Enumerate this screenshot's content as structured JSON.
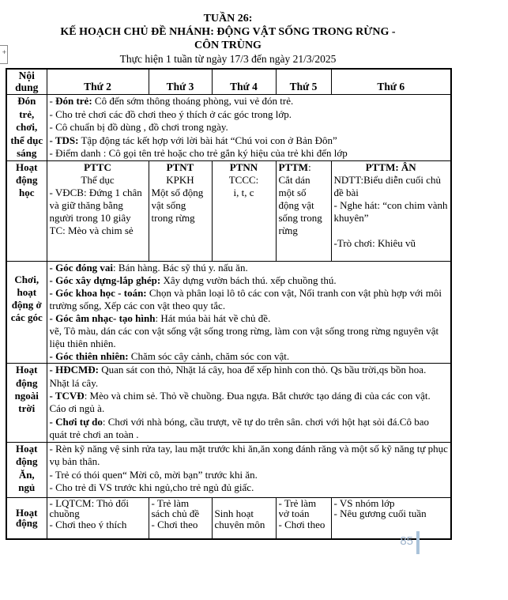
{
  "header": {
    "title1": "TUẦN 26:",
    "title2": "KẾ HOẠCH CHỦ ĐỀ NHÁNH: ĐỘNG VẬT SỐNG TRONG RỪNG -",
    "title3": "CÔN TRÙNG",
    "subtitle": "Thực hiện 1 tuần  từ ngày 17/3 đến ngày 21/3/2025"
  },
  "table": {
    "headers": [
      "Nội dung",
      "Thứ  2",
      "Thứ  3",
      "Thứ  4",
      "Thứ  5",
      "Thứ 6"
    ]
  },
  "rows": {
    "don_tre": {
      "label": [
        "Đón",
        "trẻ,",
        "chơi,",
        "thể dục",
        "sáng"
      ],
      "content": [
        {
          "s": [
            [
              "- ",
              0
            ],
            [
              "Đón trẻ:",
              1
            ],
            [
              " Cô đến sớm thông thoáng phòng, vui vẻ đón trẻ.",
              0
            ]
          ]
        },
        "- Cho trẻ chơi các đồ chơi theo ý thích ở các góc trong lớp.",
        "- Cô chuẩn bị đồ dùng , đồ chơi trong ngày.",
        {
          "s": [
            [
              "- TDS:",
              1
            ],
            [
              " Tập động tác kết hợp với lời bài hát “Chú voi con ở Bản Đôn”",
              0
            ]
          ]
        },
        "- Điểm danh : Cô gọi tên trẻ hoặc cho trẻ gắn ký hiệu của trẻ khi đến lớp"
      ]
    },
    "hoc": {
      "label": [
        "Hoạt",
        "động",
        "học"
      ],
      "t2": [
        {
          "a": "c",
          "s": [
            [
              "PTTC",
              1
            ]
          ]
        },
        {
          "a": "c",
          "s": [
            [
              "Thể dục",
              0
            ]
          ]
        },
        "- VĐCB: Đứng 1 chân và giữ thăng bằng người trong 10 giây",
        "TC: Mèo và chim sẻ"
      ],
      "t3": [
        {
          "a": "c",
          "s": [
            [
              "PTNT",
              1
            ]
          ]
        },
        {
          "a": "c",
          "s": [
            [
              "KPKH",
              0
            ]
          ]
        },
        "Một số động vật sống trong rừng"
      ],
      "t4": [
        {
          "a": "c",
          "s": [
            [
              "PTNN",
              1
            ]
          ]
        },
        {
          "a": "c",
          "s": [
            [
              "TCCC:",
              0
            ]
          ]
        },
        {
          "a": "c",
          "s": [
            [
              "i, t, c",
              0
            ]
          ]
        }
      ],
      "t5": [
        {
          "s": [
            [
              "PTTM",
              1
            ],
            [
              ":",
              0
            ]
          ]
        },
        "Cắt dán một số động vật sống trong rừng"
      ],
      "t6": [
        {
          "a": "c",
          "s": [
            [
              "PTTM: ÂN",
              1
            ]
          ]
        },
        "NDTT:Biểu diễn cuối chủ đề bài",
        "- Nghe hát: “con chim vành khuyên”",
        " ",
        "-Trò chơi: Khiêu vũ"
      ]
    },
    "goc": {
      "label": [
        "Chơi,",
        "hoạt",
        "động ở",
        "các góc"
      ],
      "content": [
        {
          "s": [
            [
              "- Góc đóng vai",
              1
            ],
            [
              ": Bán hàng. Bác sỹ thú y. nấu ăn.",
              0
            ]
          ]
        },
        {
          "s": [
            [
              "- Góc xây dựng-lắp ghép:",
              1
            ],
            [
              "  Xây dựng vườn bách thú. xếp chuồng thú.",
              0
            ]
          ]
        },
        {
          "s": [
            [
              "- Góc khoa học - toán:",
              1
            ],
            [
              " Chọn và phân loại lô tô các con vật, Nối tranh con vật phù hợp với môi trường sống, Xếp các con vật theo quy tắc.",
              0
            ]
          ]
        },
        {
          "s": [
            [
              "- Góc âm nhạc- tạo hình",
              1
            ],
            [
              ": Hát múa bài hát về chủ đề.",
              0
            ]
          ]
        },
        "vẽ, Tô màu, dán  các con vật sống vật sống trong rừng, làm con vật sống trong rừng nguyên vật liệu thiên nhiên.",
        {
          "s": [
            [
              "- Góc thiên nhiên:",
              1
            ],
            [
              " Chăm sóc cây cảnh, chăm sóc con vật.",
              0
            ]
          ]
        }
      ]
    },
    "ngoai_troi": {
      "label": [
        "Hoạt",
        "động",
        "ngoài",
        "trời"
      ],
      "content": [
        {
          "s": [
            [
              "- HĐCMĐ:",
              1
            ],
            [
              " Quan sát con thỏ, Nhặt lá cây, hoa để xếp hình con thỏ. Qs bầu trời,qs bồn hoa. Nhặt lá cây.",
              0
            ]
          ]
        },
        {
          "s": [
            [
              "- TCVĐ",
              1
            ],
            [
              ": Mèo và chim sẻ. Thỏ về chuồng. Đua ngựa. Bắt chước tạo dáng đi của các con vật. Cáo ơi ngủ à.",
              0
            ]
          ]
        },
        {
          "s": [
            [
              "- Chơi tự do",
              1
            ],
            [
              ": Chơi với nhà bóng, cầu trượt, vẽ tự do trên sân. chơi với hột hạt sỏi đá.Cô bao quát trẻ chơi an toàn .",
              0
            ]
          ]
        }
      ]
    },
    "an_ngu": {
      "label": [
        "Hoạt",
        "động",
        "Ăn,",
        "ngủ"
      ],
      "content": [
        "- Rèn kỹ năng vệ sinh rửa tay, lau mặt trước khi ăn,ăn xong đánh răng và một số kỹ năng tự  phục vụ bản thân.",
        "- Trẻ có thói quen“ Mời cô, mời bạn” trước khi ăn.",
        "- Cho trẻ đi VS trước khi ngủ,cho trẻ ngủ đủ giấc."
      ]
    },
    "chieu": {
      "label": [
        "Hoạt",
        "động"
      ],
      "t2": [
        "- LQTCM: Thỏ đổi chuồng",
        "- Chơi theo ý thích"
      ],
      "t3": [
        "- Trẻ làm sách chủ đề",
        "- Chơi theo"
      ],
      "t4": [
        " ",
        "Sinh hoạt chuyên môn"
      ],
      "t5": [
        "- Trẻ làm vở toán",
        "- Chơi theo ý"
      ],
      "t6": [
        "- VS nhóm lớp",
        "- Nêu gương cuối tuần"
      ]
    }
  },
  "footer": {
    "page_number": "85",
    "page_number_color": "#9fb4cc",
    "cursor_bar_color": "#aac3da"
  },
  "icons": {
    "margin_widget_plus": "+"
  }
}
